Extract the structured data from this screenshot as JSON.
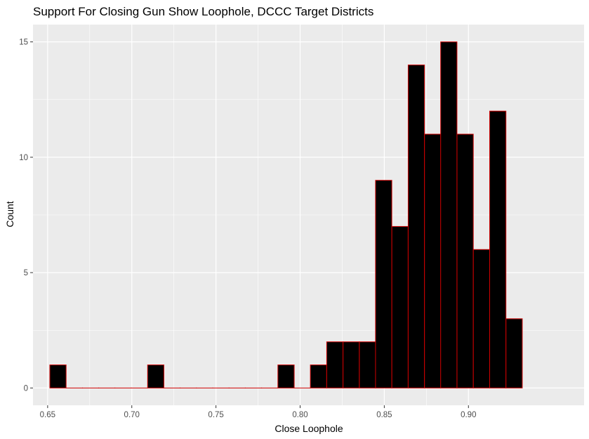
{
  "chart_data": {
    "type": "bar",
    "subtype": "histogram",
    "title": "Support For Closing Gun Show Loophole, DCCC Target Districts",
    "xlabel": "Close Loophole",
    "ylabel": "Count",
    "x_ticks": [
      "0.65",
      "0.70",
      "0.75",
      "0.80",
      "0.85",
      "0.90"
    ],
    "y_ticks": [
      "0",
      "5",
      "10",
      "15"
    ],
    "xlim": [
      0.6413,
      0.9687
    ],
    "ylim": [
      -0.75,
      15.75
    ],
    "bin_width": 0.009677,
    "bins": [
      {
        "x0": 0.6513,
        "count": 1
      },
      {
        "x0": 0.661,
        "count": 0
      },
      {
        "x0": 0.6707,
        "count": 0
      },
      {
        "x0": 0.6803,
        "count": 0
      },
      {
        "x0": 0.69,
        "count": 0
      },
      {
        "x0": 0.6997,
        "count": 0
      },
      {
        "x0": 0.7094,
        "count": 1
      },
      {
        "x0": 0.719,
        "count": 0
      },
      {
        "x0": 0.7287,
        "count": 0
      },
      {
        "x0": 0.7384,
        "count": 0
      },
      {
        "x0": 0.7481,
        "count": 0
      },
      {
        "x0": 0.7577,
        "count": 0
      },
      {
        "x0": 0.7674,
        "count": 0
      },
      {
        "x0": 0.7771,
        "count": 0
      },
      {
        "x0": 0.7868,
        "count": 1
      },
      {
        "x0": 0.7964,
        "count": 0
      },
      {
        "x0": 0.8061,
        "count": 1
      },
      {
        "x0": 0.8158,
        "count": 2
      },
      {
        "x0": 0.8255,
        "count": 2
      },
      {
        "x0": 0.8352,
        "count": 2
      },
      {
        "x0": 0.8448,
        "count": 9
      },
      {
        "x0": 0.8545,
        "count": 7
      },
      {
        "x0": 0.8642,
        "count": 14
      },
      {
        "x0": 0.8739,
        "count": 11
      },
      {
        "x0": 0.8835,
        "count": 15
      },
      {
        "x0": 0.8932,
        "count": 11
      },
      {
        "x0": 0.9029,
        "count": 6
      },
      {
        "x0": 0.9126,
        "count": 12
      },
      {
        "x0": 0.9223,
        "count": 3
      }
    ],
    "grid": true,
    "legend": "none",
    "colors": {
      "bar_fill": "#000000",
      "bar_outline": "#cc0000",
      "panel_background": "#ebebeb",
      "gridline": "#ffffff"
    }
  }
}
